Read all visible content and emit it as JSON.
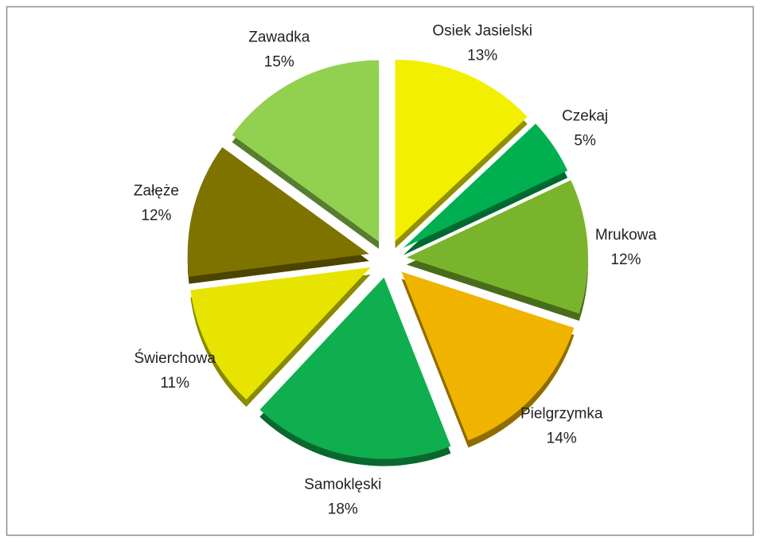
{
  "chart_data": {
    "type": "pie",
    "categories": [
      "Osiek Jasielski",
      "Czekaj",
      "Mrukowa",
      "Pielgrzymka",
      "Samoklęski",
      "Świerchowa",
      "Załęże",
      "Zawadka"
    ],
    "values": [
      13,
      5,
      12,
      14,
      18,
      11,
      12,
      15
    ],
    "value_labels": [
      "13%",
      "5%",
      "12%",
      "14%",
      "18%",
      "11%",
      "12%",
      "15%"
    ],
    "colors": [
      "#f2f000",
      "#00b050",
      "#7ab42c",
      "#f0b400",
      "#0fae4e",
      "#e6e400",
      "#7f7300",
      "#92d050"
    ]
  }
}
